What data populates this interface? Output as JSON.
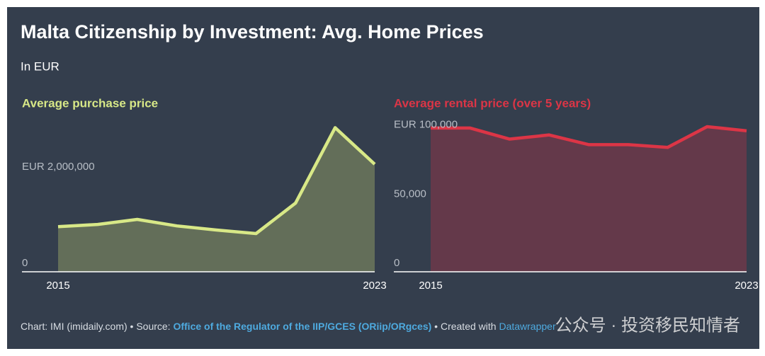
{
  "header": {
    "title": "Malta Citizenship by Investment: Avg. Home Prices",
    "subtitle": "In EUR"
  },
  "chart_data": [
    {
      "type": "area",
      "title": "Average purchase price",
      "color": "#d8e887",
      "fill": "#636e59",
      "x": [
        2015,
        2016,
        2017,
        2018,
        2019,
        2020,
        2021,
        2022,
        2023
      ],
      "values": [
        940000,
        985000,
        1090000,
        955000,
        870000,
        795000,
        1430000,
        3000000,
        2240000
      ],
      "xlim": [
        2015,
        2023
      ],
      "xticks": [
        2015,
        2023
      ],
      "ylim": [
        0,
        3050000
      ],
      "yticks": [
        0,
        {
          "value": 2000000,
          "label": "EUR 2,000,000"
        }
      ]
    },
    {
      "type": "area",
      "title": "Average rental price (over 5 years)",
      "color": "#dc3546",
      "fill": "#64394a",
      "x": [
        2015,
        2016,
        2017,
        2018,
        2019,
        2020,
        2021,
        2022,
        2023
      ],
      "values": [
        104000,
        104000,
        96000,
        99000,
        92000,
        92000,
        90000,
        105000,
        102000
      ],
      "xlim": [
        2015,
        2023
      ],
      "xticks": [
        2015,
        2023
      ],
      "ylim": [
        0,
        106000
      ],
      "yticks": [
        0,
        {
          "value": 50000,
          "label": "50,000"
        },
        {
          "value": 100000,
          "label": "EUR 100,000"
        }
      ]
    }
  ],
  "footer": {
    "credit": "Chart: IMI (imidaily.com) • Source: ",
    "source": "Office of the Regulator of the IIP/GCES (ORiip/ORgces)",
    "created": " • Created with ",
    "tool": "Datawrapper",
    "watermark": "公众号 · 投资移民知情者"
  }
}
